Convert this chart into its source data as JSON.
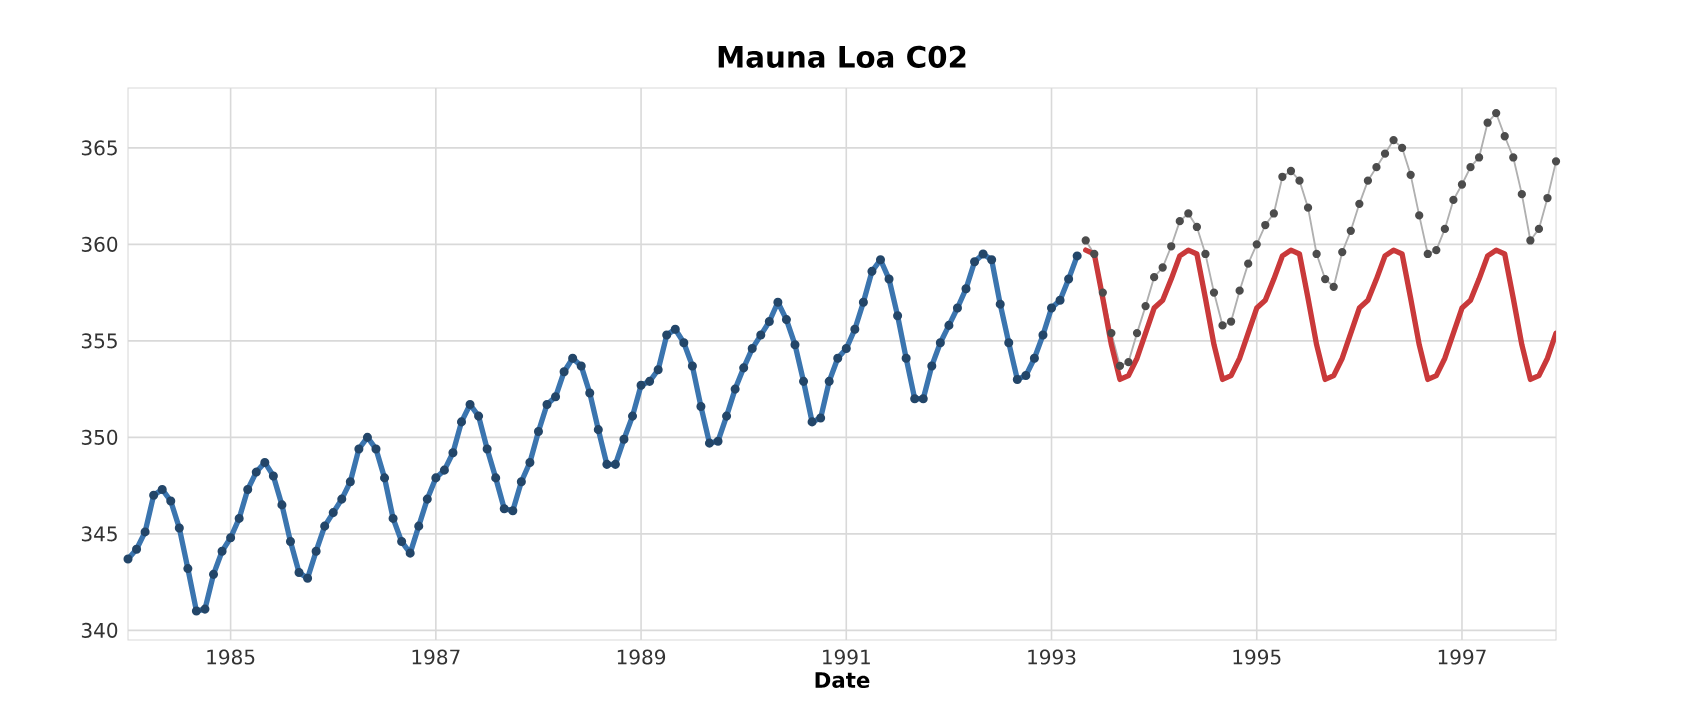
{
  "chart_data": {
    "type": "line",
    "title": "Mauna Loa C02",
    "xlabel": "Date",
    "x": [
      "1984-01",
      "1984-02",
      "1984-03",
      "1984-04",
      "1984-05",
      "1984-06",
      "1984-07",
      "1984-08",
      "1984-09",
      "1984-10",
      "1984-11",
      "1984-12",
      "1985-01",
      "1985-02",
      "1985-03",
      "1985-04",
      "1985-05",
      "1985-06",
      "1985-07",
      "1985-08",
      "1985-09",
      "1985-10",
      "1985-11",
      "1985-12",
      "1986-01",
      "1986-02",
      "1986-03",
      "1986-04",
      "1986-05",
      "1986-06",
      "1986-07",
      "1986-08",
      "1986-09",
      "1986-10",
      "1986-11",
      "1986-12",
      "1987-01",
      "1987-02",
      "1987-03",
      "1987-04",
      "1987-05",
      "1987-06",
      "1987-07",
      "1987-08",
      "1987-09",
      "1987-10",
      "1987-11",
      "1987-12",
      "1988-01",
      "1988-02",
      "1988-03",
      "1988-04",
      "1988-05",
      "1988-06",
      "1988-07",
      "1988-08",
      "1988-09",
      "1988-10",
      "1988-11",
      "1988-12",
      "1989-01",
      "1989-02",
      "1989-03",
      "1989-04",
      "1989-05",
      "1989-06",
      "1989-07",
      "1989-08",
      "1989-09",
      "1989-10",
      "1989-11",
      "1989-12",
      "1990-01",
      "1990-02",
      "1990-03",
      "1990-04",
      "1990-05",
      "1990-06",
      "1990-07",
      "1990-08",
      "1990-09",
      "1990-10",
      "1990-11",
      "1990-12",
      "1991-01",
      "1991-02",
      "1991-03",
      "1991-04",
      "1991-05",
      "1991-06",
      "1991-07",
      "1991-08",
      "1991-09",
      "1991-10",
      "1991-11",
      "1991-12",
      "1992-01",
      "1992-02",
      "1992-03",
      "1992-04",
      "1992-05",
      "1992-06",
      "1992-07",
      "1992-08",
      "1992-09",
      "1992-10",
      "1992-11",
      "1992-12",
      "1993-01",
      "1993-02",
      "1993-03",
      "1993-04",
      "1993-05",
      "1993-06",
      "1993-07",
      "1993-08",
      "1993-09",
      "1993-10",
      "1993-11",
      "1993-12",
      "1994-01",
      "1994-02",
      "1994-03",
      "1994-04",
      "1994-05",
      "1994-06",
      "1994-07",
      "1994-08",
      "1994-09",
      "1994-10",
      "1994-11",
      "1994-12",
      "1995-01",
      "1995-02",
      "1995-03",
      "1995-04",
      "1995-05",
      "1995-06",
      "1995-07",
      "1995-08",
      "1995-09",
      "1995-10",
      "1995-11",
      "1995-12",
      "1996-01",
      "1996-02",
      "1996-03",
      "1996-04",
      "1996-05",
      "1996-06",
      "1996-07",
      "1996-08",
      "1996-09",
      "1996-10",
      "1996-11",
      "1996-12",
      "1997-01",
      "1997-02",
      "1997-03",
      "1997-04",
      "1997-05",
      "1997-06",
      "1997-07",
      "1997-08",
      "1997-09",
      "1997-10",
      "1997-11",
      "1997-12"
    ],
    "series": [
      {
        "color": "#3b75af",
        "marker": "circle",
        "values": [
          343.7,
          344.2,
          345.1,
          347.0,
          347.3,
          346.7,
          345.3,
          343.2,
          341.0,
          341.1,
          342.9,
          344.1,
          344.8,
          345.8,
          347.3,
          348.2,
          348.7,
          348.0,
          346.5,
          344.6,
          343.0,
          342.7,
          344.1,
          345.4,
          346.1,
          346.8,
          347.7,
          349.4,
          350.0,
          349.4,
          347.9,
          345.8,
          344.6,
          344.0,
          345.4,
          346.8,
          347.9,
          348.3,
          349.2,
          350.8,
          351.7,
          351.1,
          349.4,
          347.9,
          346.3,
          346.2,
          347.7,
          348.7,
          350.3,
          351.7,
          352.1,
          353.4,
          354.1,
          353.7,
          352.3,
          350.4,
          348.6,
          348.6,
          349.9,
          351.1,
          352.7,
          352.9,
          353.5,
          355.3,
          355.6,
          354.9,
          353.7,
          351.6,
          349.7,
          349.8,
          351.1,
          352.5,
          353.6,
          354.6,
          355.3,
          356.0,
          357.0,
          356.1,
          354.8,
          352.9,
          350.8,
          351.0,
          352.9,
          354.1,
          354.6,
          355.6,
          357.0,
          358.6,
          359.2,
          358.2,
          356.3,
          354.1,
          352.0,
          352.0,
          353.7,
          354.9,
          355.8,
          356.7,
          357.7,
          359.1,
          359.5,
          359.2,
          356.9,
          354.9,
          353.0,
          353.2,
          354.1,
          355.3,
          356.7,
          357.1,
          358.2,
          359.4,
          null,
          null,
          null,
          null,
          null,
          null,
          null,
          null,
          null,
          null,
          null,
          null,
          null,
          null,
          null,
          null,
          null,
          null,
          null,
          null,
          null,
          null,
          null,
          null,
          null,
          null,
          null,
          null,
          null,
          null,
          null,
          null,
          null,
          null,
          null,
          null,
          null,
          null,
          null,
          null,
          null,
          null,
          null,
          null,
          null,
          null,
          null,
          null,
          null,
          null,
          null,
          null,
          null,
          null,
          null,
          null
        ]
      },
      {
        "color": "#b0b0b0",
        "marker": "circle",
        "line_style": "solid",
        "values": [
          null,
          null,
          null,
          null,
          null,
          null,
          null,
          null,
          null,
          null,
          null,
          null,
          null,
          null,
          null,
          null,
          null,
          null,
          null,
          null,
          null,
          null,
          null,
          null,
          null,
          null,
          null,
          null,
          null,
          null,
          null,
          null,
          null,
          null,
          null,
          null,
          null,
          null,
          null,
          null,
          null,
          null,
          null,
          null,
          null,
          null,
          null,
          null,
          null,
          null,
          null,
          null,
          null,
          null,
          null,
          null,
          null,
          null,
          null,
          null,
          null,
          null,
          null,
          null,
          null,
          null,
          null,
          null,
          null,
          null,
          null,
          null,
          null,
          null,
          null,
          null,
          null,
          null,
          null,
          null,
          null,
          null,
          null,
          null,
          null,
          null,
          null,
          null,
          null,
          null,
          null,
          null,
          null,
          null,
          null,
          null,
          null,
          null,
          null,
          null,
          null,
          null,
          null,
          null,
          null,
          null,
          null,
          null,
          null,
          null,
          null,
          null,
          360.2,
          359.5,
          357.5,
          355.4,
          353.7,
          353.9,
          355.4,
          356.8,
          358.3,
          358.8,
          359.9,
          361.2,
          361.6,
          360.9,
          359.5,
          357.5,
          355.8,
          356.0,
          357.6,
          359.0,
          360.0,
          361.0,
          361.6,
          363.5,
          363.8,
          363.3,
          361.9,
          359.5,
          358.2,
          357.8,
          359.6,
          360.7,
          362.1,
          363.3,
          364.0,
          364.7,
          365.4,
          365.0,
          363.6,
          361.5,
          359.5,
          359.7,
          360.8,
          362.3,
          363.1,
          364.0,
          364.5,
          366.3,
          366.8,
          365.6,
          364.5,
          362.6,
          360.2,
          360.8,
          362.4,
          364.3
        ]
      },
      {
        "color": "#c9393a",
        "marker": "none",
        "values": [
          null,
          null,
          null,
          null,
          null,
          null,
          null,
          null,
          null,
          null,
          null,
          null,
          null,
          null,
          null,
          null,
          null,
          null,
          null,
          null,
          null,
          null,
          null,
          null,
          null,
          null,
          null,
          null,
          null,
          null,
          null,
          null,
          null,
          null,
          null,
          null,
          null,
          null,
          null,
          null,
          null,
          null,
          null,
          null,
          null,
          null,
          null,
          null,
          null,
          null,
          null,
          null,
          null,
          null,
          null,
          null,
          null,
          null,
          null,
          null,
          null,
          null,
          null,
          null,
          null,
          null,
          null,
          null,
          null,
          null,
          null,
          null,
          null,
          null,
          null,
          null,
          null,
          null,
          null,
          null,
          null,
          null,
          null,
          null,
          null,
          null,
          null,
          null,
          null,
          null,
          null,
          null,
          null,
          null,
          null,
          null,
          null,
          null,
          null,
          null,
          null,
          null,
          null,
          null,
          null,
          null,
          null,
          null,
          null,
          null,
          null,
          null,
          359.7,
          359.5,
          357.2,
          354.8,
          353.0,
          353.2,
          354.1,
          355.4,
          356.7,
          357.1,
          358.2,
          359.4,
          359.7,
          359.5,
          357.2,
          354.8,
          353.0,
          353.2,
          354.1,
          355.4,
          356.7,
          357.1,
          358.2,
          359.4,
          359.7,
          359.5,
          357.2,
          354.8,
          353.0,
          353.2,
          354.1,
          355.4,
          356.7,
          357.1,
          358.2,
          359.4,
          359.7,
          359.5,
          357.2,
          354.8,
          353.0,
          353.2,
          354.1,
          355.4,
          356.7,
          357.1,
          358.2,
          359.4,
          359.7,
          359.5,
          357.2,
          354.8,
          353.0,
          353.2,
          354.1,
          355.4
        ]
      }
    ],
    "xlim": [
      "1984-01",
      "1997-12"
    ],
    "ylim": [
      339.5,
      368.1
    ],
    "xticks": [
      {
        "value": "1985-01",
        "label": "1985"
      },
      {
        "value": "1987-01",
        "label": "1987"
      },
      {
        "value": "1989-01",
        "label": "1989"
      },
      {
        "value": "1991-01",
        "label": "1991"
      },
      {
        "value": "1993-01",
        "label": "1993"
      },
      {
        "value": "1995-01",
        "label": "1995"
      },
      {
        "value": "1997-01",
        "label": "1997"
      }
    ],
    "yticks": [
      340,
      345,
      350,
      355,
      360,
      365
    ],
    "grid": true
  }
}
